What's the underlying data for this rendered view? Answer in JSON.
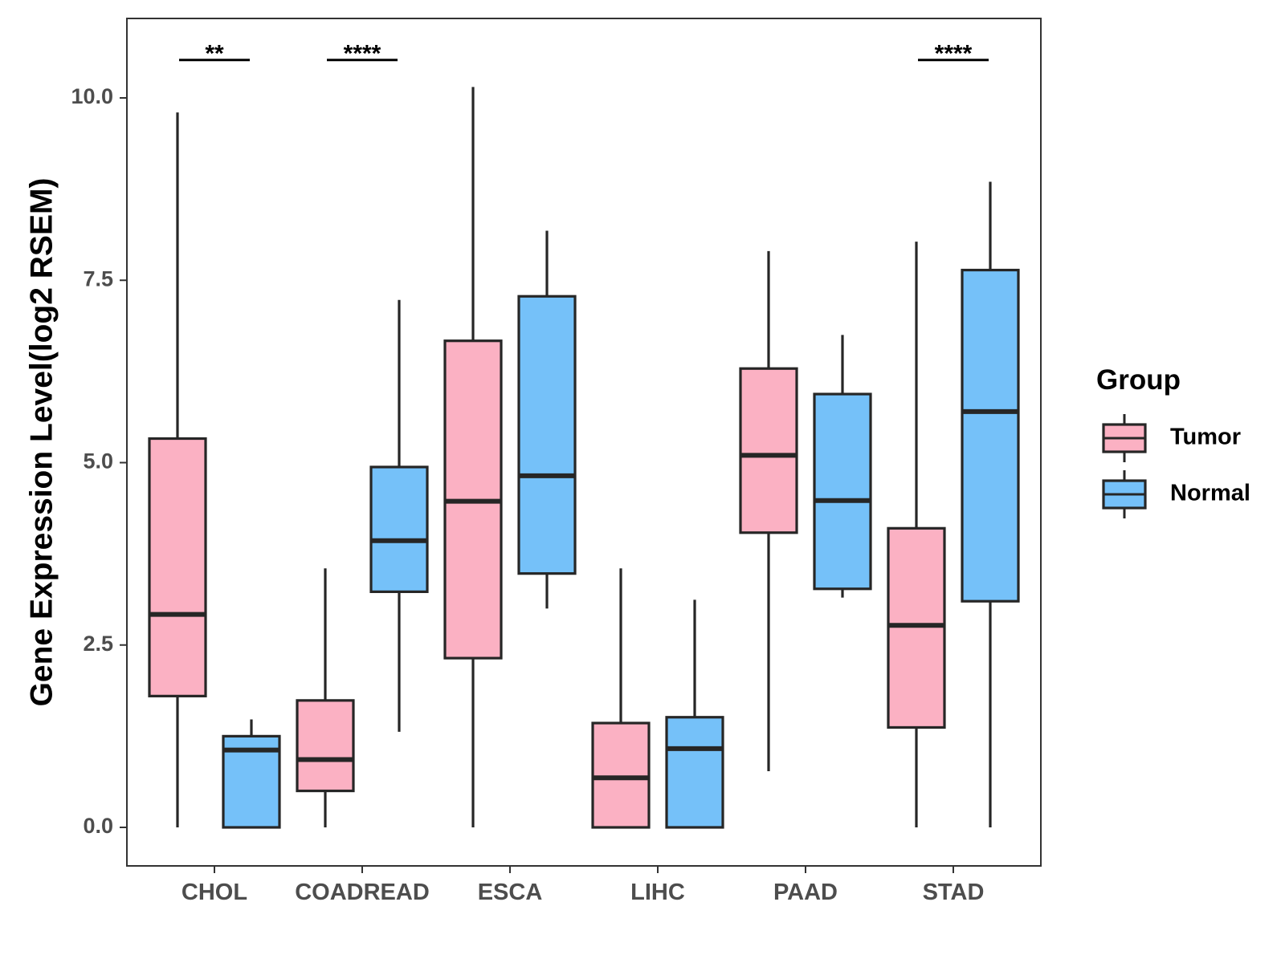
{
  "chart_data": {
    "type": "boxplot",
    "title": "",
    "xlabel": "",
    "ylabel": "Gene Expression Level(log2 RSEM)",
    "ylim": [
      -0.5,
      11.1
    ],
    "yticks": [
      0.0,
      2.5,
      5.0,
      7.5,
      10.0
    ],
    "ytick_labels": [
      "0.0",
      "2.5",
      "5.0",
      "7.5",
      "10.0"
    ],
    "grid": false,
    "categories": [
      "CHOL",
      "COADREAD",
      "ESCA",
      "LIHC",
      "PAAD",
      "STAD"
    ],
    "series": [
      {
        "name": "Tumor",
        "color": "#FBB1C3",
        "boxes": [
          {
            "category": "CHOL",
            "min": 0.0,
            "q1": 1.8,
            "median": 2.92,
            "q3": 5.33,
            "max": 9.8
          },
          {
            "category": "COADREAD",
            "min": 0.0,
            "q1": 0.5,
            "median": 0.93,
            "q3": 1.74,
            "max": 3.55
          },
          {
            "category": "ESCA",
            "min": 0.0,
            "q1": 2.32,
            "median": 4.47,
            "q3": 6.67,
            "max": 10.15
          },
          {
            "category": "LIHC",
            "min": 0.0,
            "q1": 0.0,
            "median": 0.68,
            "q3": 1.43,
            "max": 3.55
          },
          {
            "category": "PAAD",
            "min": 0.77,
            "q1": 4.04,
            "median": 5.1,
            "q3": 6.29,
            "max": 7.9
          },
          {
            "category": "STAD",
            "min": 0.0,
            "q1": 1.37,
            "median": 2.77,
            "q3": 4.1,
            "max": 8.03
          }
        ]
      },
      {
        "name": "Normal",
        "color": "#75C1F9",
        "boxes": [
          {
            "category": "CHOL",
            "min": 0.0,
            "q1": 0.0,
            "median": 1.06,
            "q3": 1.25,
            "max": 1.48
          },
          {
            "category": "COADREAD",
            "min": 1.31,
            "q1": 3.23,
            "median": 3.93,
            "q3": 4.94,
            "max": 7.23
          },
          {
            "category": "ESCA",
            "min": 3.0,
            "q1": 3.48,
            "median": 4.82,
            "q3": 7.28,
            "max": 8.18
          },
          {
            "category": "LIHC",
            "min": 0.0,
            "q1": 0.0,
            "median": 1.08,
            "q3": 1.51,
            "max": 3.12
          },
          {
            "category": "PAAD",
            "min": 3.15,
            "q1": 3.27,
            "median": 4.48,
            "q3": 5.94,
            "max": 6.75
          },
          {
            "category": "STAD",
            "min": 0.0,
            "q1": 3.1,
            "median": 5.7,
            "q3": 7.64,
            "max": 8.85
          }
        ]
      }
    ],
    "significance": [
      {
        "category": "CHOL",
        "label": "**"
      },
      {
        "category": "COADREAD",
        "label": "****"
      },
      {
        "category": "STAD",
        "label": "****"
      }
    ],
    "significance_y": 10.52,
    "legend": {
      "title": "Group",
      "placement": "right",
      "entries": [
        "Tumor",
        "Normal"
      ]
    }
  },
  "colors": {
    "box_outline": "#262626",
    "axis": "#333333",
    "tumor": "#FBB1C3",
    "normal": "#75C1F9"
  }
}
